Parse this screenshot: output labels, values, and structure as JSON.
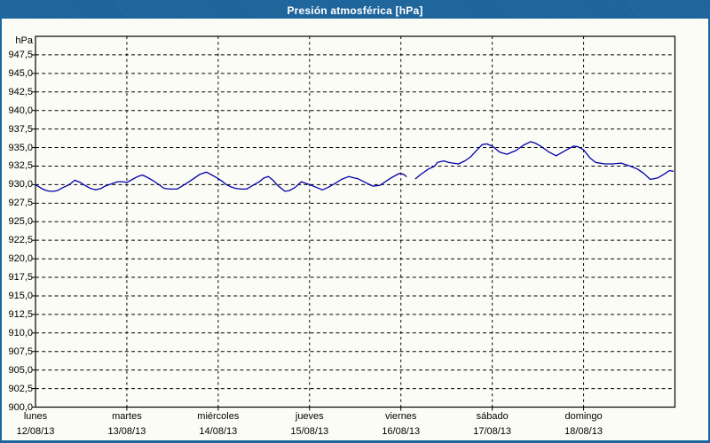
{
  "window": {
    "title": "Presión atmosférica [hPa]"
  },
  "colors": {
    "frame_blue": "#1d669e",
    "title_text": "#ffffff",
    "plot_background": "#fcfcf7",
    "grid_black": "#000000",
    "line_navy": "#0000a8"
  },
  "chart_data": {
    "type": "line",
    "title": "Presión atmosférica [hPa]",
    "unit_label": "hPa",
    "grid": "dashed",
    "legend": "none",
    "y_axis": {
      "min": 900.0,
      "max": 950.0,
      "step": 2.5,
      "tick_labels": [
        "947,5",
        "945,0",
        "942,5",
        "940,0",
        "937,5",
        "935,0",
        "932,5",
        "930,0",
        "927,5",
        "925,0",
        "922,5",
        "920,0",
        "917,5",
        "915,0",
        "912,5",
        "910,0",
        "907,5",
        "905,0",
        "902,5",
        "900,0"
      ]
    },
    "x_axis": {
      "span_days": 7,
      "days": [
        {
          "name": "lunes",
          "date": "12/08/13"
        },
        {
          "name": "martes",
          "date": "13/08/13"
        },
        {
          "name": "miércoles",
          "date": "14/08/13"
        },
        {
          "name": "jueves",
          "date": "15/08/13"
        },
        {
          "name": "viernes",
          "date": "16/08/13"
        },
        {
          "name": "sábado",
          "date": "17/08/13"
        },
        {
          "name": "domingo",
          "date": "18/08/13"
        }
      ]
    },
    "series": [
      {
        "name": "presión atmosférica",
        "unit": "hPa",
        "segments": [
          [
            [
              0.0,
              930.0
            ],
            [
              0.04,
              929.7
            ],
            [
              0.08,
              929.4
            ],
            [
              0.12,
              929.2
            ],
            [
              0.16,
              929.1
            ],
            [
              0.2,
              929.1
            ],
            [
              0.24,
              929.2
            ],
            [
              0.3,
              929.6
            ],
            [
              0.37,
              930.0
            ],
            [
              0.43,
              930.6
            ],
            [
              0.49,
              930.3
            ],
            [
              0.54,
              929.9
            ],
            [
              0.6,
              929.5
            ],
            [
              0.66,
              929.3
            ],
            [
              0.72,
              929.5
            ],
            [
              0.76,
              929.8
            ],
            [
              0.83,
              930.1
            ],
            [
              0.9,
              930.4
            ],
            [
              0.95,
              930.4
            ],
            [
              1.0,
              930.3
            ],
            [
              1.06,
              930.7
            ],
            [
              1.12,
              931.1
            ],
            [
              1.17,
              931.3
            ],
            [
              1.22,
              931.0
            ],
            [
              1.28,
              930.6
            ],
            [
              1.35,
              930.0
            ],
            [
              1.41,
              929.5
            ],
            [
              1.47,
              929.4
            ],
            [
              1.55,
              929.4
            ],
            [
              1.63,
              930.0
            ],
            [
              1.73,
              930.8
            ],
            [
              1.8,
              931.4
            ],
            [
              1.87,
              931.7
            ],
            [
              1.93,
              931.3
            ],
            [
              1.99,
              930.9
            ],
            [
              2.05,
              930.4
            ],
            [
              2.09,
              930.0
            ],
            [
              2.14,
              929.7
            ],
            [
              2.19,
              929.5
            ],
            [
              2.25,
              929.4
            ],
            [
              2.31,
              929.4
            ],
            [
              2.38,
              929.9
            ],
            [
              2.45,
              930.4
            ],
            [
              2.5,
              930.9
            ],
            [
              2.55,
              931.1
            ],
            [
              2.6,
              930.6
            ],
            [
              2.65,
              929.9
            ],
            [
              2.73,
              929.1
            ],
            [
              2.78,
              929.2
            ],
            [
              2.84,
              929.6
            ],
            [
              2.91,
              930.4
            ],
            [
              3.0,
              930.0
            ],
            [
              3.08,
              929.6
            ],
            [
              3.14,
              929.3
            ],
            [
              3.2,
              929.6
            ],
            [
              3.27,
              930.1
            ],
            [
              3.35,
              930.7
            ],
            [
              3.43,
              931.1
            ],
            [
              3.49,
              930.9
            ],
            [
              3.53,
              930.8
            ],
            [
              3.61,
              930.3
            ],
            [
              3.69,
              929.8
            ],
            [
              3.77,
              929.9
            ],
            [
              3.83,
              930.4
            ],
            [
              3.89,
              930.9
            ],
            [
              3.95,
              931.3
            ],
            [
              3.98,
              931.5
            ],
            [
              4.03,
              931.4
            ],
            [
              4.06,
              931.1
            ]
          ],
          [
            [
              4.16,
              930.8
            ],
            [
              4.21,
              931.3
            ],
            [
              4.3,
              932.1
            ],
            [
              4.37,
              932.5
            ],
            [
              4.4,
              933.0
            ],
            [
              4.47,
              933.2
            ],
            [
              4.52,
              933.0
            ],
            [
              4.57,
              932.9
            ],
            [
              4.63,
              932.8
            ],
            [
              4.7,
              933.2
            ],
            [
              4.76,
              933.7
            ],
            [
              4.82,
              934.5
            ],
            [
              4.89,
              935.4
            ],
            [
              4.94,
              935.5
            ],
            [
              5.0,
              935.2
            ],
            [
              5.08,
              934.4
            ],
            [
              5.16,
              934.1
            ],
            [
              5.26,
              934.6
            ],
            [
              5.34,
              935.3
            ],
            [
              5.42,
              935.8
            ],
            [
              5.47,
              935.6
            ],
            [
              5.53,
              935.2
            ],
            [
              5.62,
              934.4
            ],
            [
              5.7,
              933.9
            ],
            [
              5.8,
              934.6
            ],
            [
              5.89,
              935.2
            ],
            [
              5.94,
              935.1
            ],
            [
              6.0,
              934.7
            ],
            [
              6.07,
              933.6
            ],
            [
              6.13,
              933.0
            ],
            [
              6.23,
              932.8
            ],
            [
              6.32,
              932.8
            ],
            [
              6.41,
              932.9
            ],
            [
              6.51,
              932.5
            ],
            [
              6.59,
              932.1
            ],
            [
              6.66,
              931.5
            ],
            [
              6.73,
              930.7
            ],
            [
              6.81,
              930.9
            ],
            [
              6.88,
              931.4
            ],
            [
              6.94,
              931.9
            ],
            [
              6.98,
              931.8
            ]
          ]
        ]
      }
    ]
  },
  "layout_note": "data gap in trace during viernes morning between day 4.06 and 4.16"
}
